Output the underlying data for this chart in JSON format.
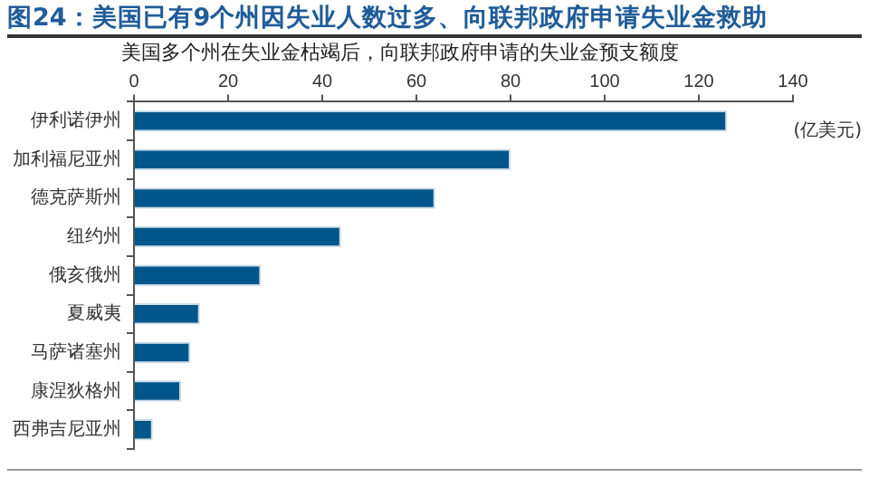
{
  "chart_data": {
    "type": "bar",
    "orientation": "horizontal",
    "title": "图24：美国已有9个州因失业人数过多、向联邦政府申请失业金救助",
    "subtitle": "美国多个州在失业金枯竭后，向联邦政府申请的失业金预支额度",
    "categories": [
      "伊利诺伊州",
      "加利福尼亚州",
      "德克萨斯州",
      "纽约州",
      "俄亥俄州",
      "夏威夷",
      "马萨诸塞州",
      "康涅狄格州",
      "西弗吉尼亚州"
    ],
    "values": [
      126,
      80,
      64,
      44,
      27,
      14,
      12,
      10,
      4
    ],
    "color": "#00568a",
    "xlim": [
      0,
      140
    ],
    "xticks": [
      0,
      20,
      40,
      60,
      80,
      100,
      120,
      140
    ],
    "grid": false,
    "legend": false,
    "annotations": [
      "(亿美元)"
    ]
  }
}
